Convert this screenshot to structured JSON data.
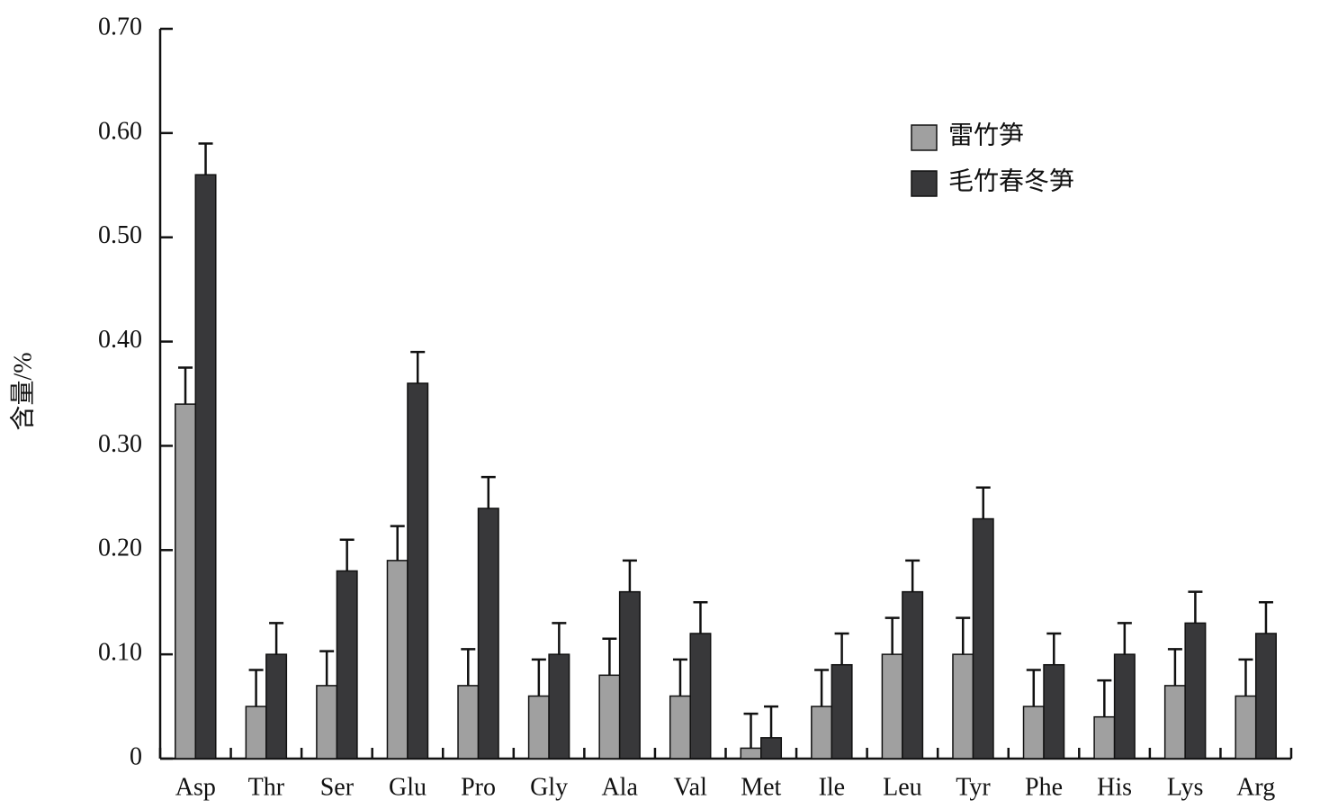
{
  "chart_data": {
    "type": "bar",
    "ylabel": "含量/%",
    "categories": [
      "Asp",
      "Thr",
      "Ser",
      "Glu",
      "Pro",
      "Gly",
      "Ala",
      "Val",
      "Met",
      "Ile",
      "Leu",
      "Tyr",
      "Phe",
      "His",
      "Lys",
      "Arg"
    ],
    "series": [
      {
        "name": "雷竹笋",
        "color": "#a0a0a0",
        "values": [
          0.34,
          0.05,
          0.07,
          0.19,
          0.07,
          0.06,
          0.08,
          0.06,
          0.01,
          0.05,
          0.1,
          0.1,
          0.05,
          0.04,
          0.07,
          0.06
        ],
        "errors": [
          0.035,
          0.035,
          0.033,
          0.033,
          0.035,
          0.035,
          0.035,
          0.035,
          0.033,
          0.035,
          0.035,
          0.035,
          0.035,
          0.035,
          0.035,
          0.035
        ]
      },
      {
        "name": "毛竹春冬笋",
        "color": "#38383a",
        "values": [
          0.56,
          0.1,
          0.18,
          0.36,
          0.24,
          0.1,
          0.16,
          0.12,
          0.02,
          0.09,
          0.16,
          0.23,
          0.09,
          0.1,
          0.13,
          0.12
        ],
        "errors": [
          0.03,
          0.03,
          0.03,
          0.03,
          0.03,
          0.03,
          0.03,
          0.03,
          0.03,
          0.03,
          0.03,
          0.03,
          0.03,
          0.03,
          0.03,
          0.03
        ]
      }
    ],
    "ylim": [
      0,
      0.7
    ],
    "yticks": [
      0,
      {
        "value": 0.1,
        "label": "0.10"
      },
      {
        "value": 0.2,
        "label": "0.20"
      },
      {
        "value": 0.3,
        "label": "0.30"
      },
      {
        "value": 0.4,
        "label": "0.40"
      },
      {
        "value": 0.5,
        "label": "0.50"
      },
      {
        "value": 0.6,
        "label": "0.60"
      },
      {
        "value": 0.7,
        "label": "0.70"
      }
    ],
    "legend": "upper right"
  }
}
